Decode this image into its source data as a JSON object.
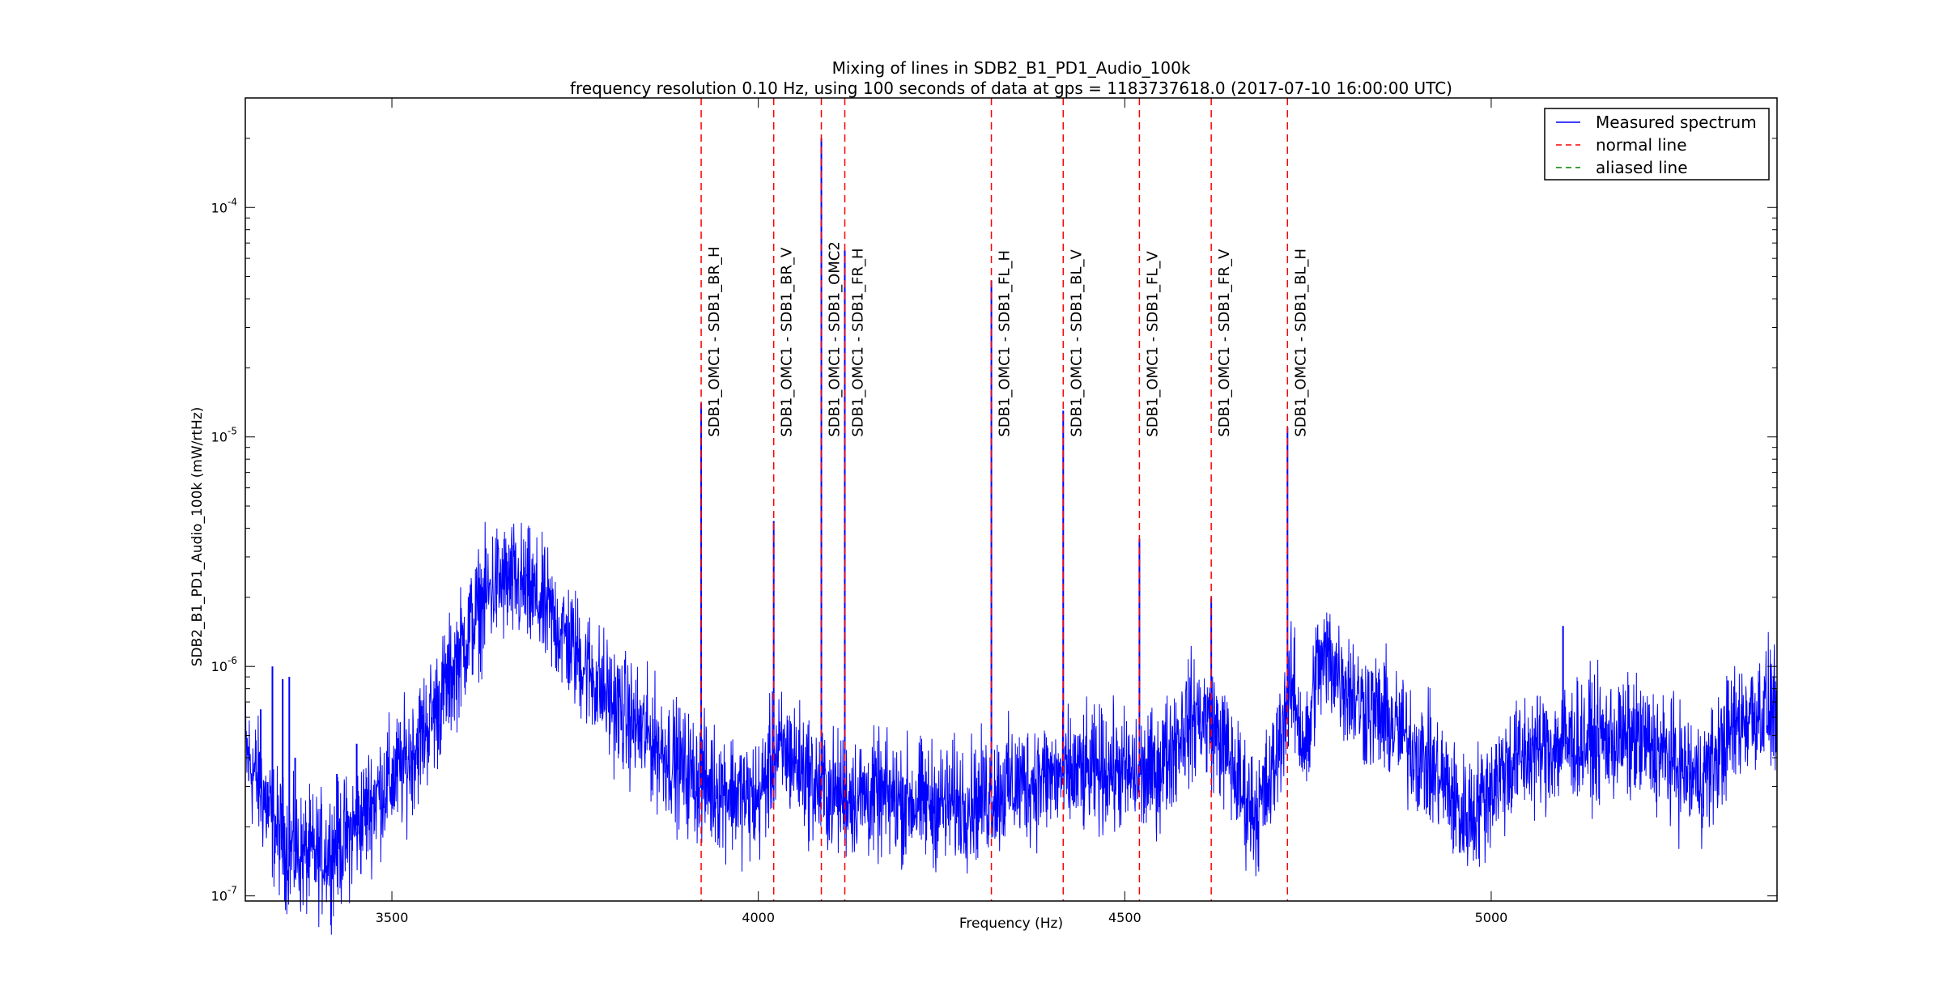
{
  "chart_data": {
    "type": "line",
    "title": "Mixing of lines in SDB2_B1_PD1_Audio_100k",
    "subtitle": "frequency resolution 0.10 Hz, using 100 seconds of data at gps = 1183737618.0 (2017-07-10 16:00:00 UTC)",
    "xlabel": "Frequency (Hz)",
    "ylabel": "SDB2_B1_PD1_Audio_100k (mW/rtHz)",
    "xlim": [
      3300,
      5390
    ],
    "ylim": [
      9.5e-08,
      0.0003
    ],
    "yscale": "log",
    "grid": false,
    "legend_position": "top-right",
    "x_ticks": [
      {
        "value": 3500,
        "label": "3500"
      },
      {
        "value": 4000,
        "label": "4000"
      },
      {
        "value": 4500,
        "label": "4500"
      },
      {
        "value": 5000,
        "label": "5000"
      }
    ],
    "y_ticks": [
      {
        "value": 1e-07,
        "base": "10",
        "exp": "-7"
      },
      {
        "value": 1e-06,
        "base": "10",
        "exp": "-6"
      },
      {
        "value": 1e-05,
        "base": "10",
        "exp": "-5"
      },
      {
        "value": 0.0001,
        "base": "10",
        "exp": "-4"
      }
    ],
    "legend": [
      {
        "label": "Measured spectrum",
        "color": "#0000ff",
        "style": "solid"
      },
      {
        "label": "normal line",
        "color": "#ff0000",
        "style": "dashed"
      },
      {
        "label": "aliased line",
        "color": "#008000",
        "style": "dashed"
      }
    ],
    "spectrum": {
      "name": "Measured spectrum",
      "color": "#0000ff",
      "baseline": [
        [
          3300,
          4.2e-07
        ],
        [
          3320,
          3e-07
        ],
        [
          3340,
          2e-07
        ],
        [
          3360,
          1.6e-07
        ],
        [
          3380,
          1.5e-07
        ],
        [
          3400,
          1.5e-07
        ],
        [
          3420,
          1.6e-07
        ],
        [
          3440,
          1.8e-07
        ],
        [
          3460,
          2.2e-07
        ],
        [
          3480,
          2.8e-07
        ],
        [
          3500,
          3.2e-07
        ],
        [
          3520,
          3.8e-07
        ],
        [
          3540,
          5e-07
        ],
        [
          3560,
          6.5e-07
        ],
        [
          3580,
          9e-07
        ],
        [
          3600,
          1.3e-06
        ],
        [
          3620,
          1.8e-06
        ],
        [
          3640,
          2.3e-06
        ],
        [
          3660,
          2.3e-06
        ],
        [
          3680,
          2.2e-06
        ],
        [
          3700,
          1.9e-06
        ],
        [
          3720,
          1.6e-06
        ],
        [
          3740,
          1.3e-06
        ],
        [
          3760,
          1.05e-06
        ],
        [
          3780,
          8.5e-07
        ],
        [
          3800,
          7e-07
        ],
        [
          3820,
          6e-07
        ],
        [
          3840,
          5.2e-07
        ],
        [
          3860,
          4.6e-07
        ],
        [
          3880,
          4e-07
        ],
        [
          3900,
          3.5e-07
        ],
        [
          3920,
          3.2e-07
        ],
        [
          3940,
          3e-07
        ],
        [
          3960,
          2.9e-07
        ],
        [
          3980,
          2.7e-07
        ],
        [
          4000,
          2.6e-07
        ],
        [
          4020,
          4e-07
        ],
        [
          4040,
          4.2e-07
        ],
        [
          4060,
          3.6e-07
        ],
        [
          4080,
          3e-07
        ],
        [
          4100,
          2.8e-07
        ],
        [
          4150,
          2.7e-07
        ],
        [
          4200,
          2.6e-07
        ],
        [
          4250,
          2.5e-07
        ],
        [
          4300,
          2.6e-07
        ],
        [
          4340,
          3e-07
        ],
        [
          4400,
          3.3e-07
        ],
        [
          4450,
          3.4e-07
        ],
        [
          4480,
          3.6e-07
        ],
        [
          4500,
          3.4e-07
        ],
        [
          4520,
          3.3e-07
        ],
        [
          4540,
          3.4e-07
        ],
        [
          4560,
          4.2e-07
        ],
        [
          4580,
          5.5e-07
        ],
        [
          4600,
          6.2e-07
        ],
        [
          4620,
          5.5e-07
        ],
        [
          4640,
          4.2e-07
        ],
        [
          4660,
          2.8e-07
        ],
        [
          4680,
          2.3e-07
        ],
        [
          4700,
          3.2e-07
        ],
        [
          4720,
          6.8e-07
        ],
        [
          4730,
          8e-07
        ],
        [
          4740,
          5.2e-07
        ],
        [
          4750,
          4.3e-07
        ],
        [
          4760,
          9.5e-07
        ],
        [
          4780,
          1.1e-06
        ],
        [
          4800,
          8.5e-07
        ],
        [
          4820,
          7e-07
        ],
        [
          4860,
          5.8e-07
        ],
        [
          4900,
          4.2e-07
        ],
        [
          4940,
          3e-07
        ],
        [
          4960,
          2.2e-07
        ],
        [
          4980,
          2.4e-07
        ],
        [
          5000,
          3e-07
        ],
        [
          5020,
          3.6e-07
        ],
        [
          5050,
          4.2e-07
        ],
        [
          5100,
          4.6e-07
        ],
        [
          5150,
          4.8e-07
        ],
        [
          5200,
          4.8e-07
        ],
        [
          5230,
          4.2e-07
        ],
        [
          5260,
          3.6e-07
        ],
        [
          5280,
          3.2e-07
        ],
        [
          5300,
          3.6e-07
        ],
        [
          5320,
          4.8e-07
        ],
        [
          5340,
          5.8e-07
        ],
        [
          5360,
          6.4e-07
        ],
        [
          5390,
          6.6e-07
        ]
      ],
      "spikes": [
        [
          3321,
          6.5e-07
        ],
        [
          3337,
          1e-06
        ],
        [
          3351,
          8.8e-07
        ],
        [
          3360,
          9e-07
        ],
        [
          3368,
          4e-07
        ],
        [
          3425,
          3.4e-07
        ],
        [
          3452,
          4.6e-07
        ],
        [
          3922,
          1.4e-05
        ],
        [
          4021,
          4.3e-06
        ],
        [
          4086,
          0.0002
        ],
        [
          4118,
          6.5e-05
        ],
        [
          4318,
          4.8e-05
        ],
        [
          4416,
          1.3e-05
        ],
        [
          4520,
          3.6e-06
        ],
        [
          4618,
          2e-06
        ],
        [
          4722,
          1.1e-05
        ],
        [
          5098,
          1.5e-06
        ]
      ]
    },
    "lines": [
      {
        "freq": 3922,
        "label": "SDB1_OMC1 - SDB1_BR_H",
        "type": "normal line"
      },
      {
        "freq": 4021,
        "label": "SDB1_OMC1 - SDB1_BR_V",
        "type": "normal line"
      },
      {
        "freq": 4086,
        "label": "SDB1_OMC1 - SDB1_OMC2",
        "type": "normal line"
      },
      {
        "freq": 4118,
        "label": "SDB1_OMC1 - SDB1_FR_H",
        "type": "normal line"
      },
      {
        "freq": 4318,
        "label": "SDB1_OMC1 - SDB1_FL_H",
        "type": "normal line"
      },
      {
        "freq": 4416,
        "label": "SDB1_OMC1 - SDB1_BL_V",
        "type": "normal line"
      },
      {
        "freq": 4520,
        "label": "SDB1_OMC1 - SDB1_FL_V",
        "type": "normal line"
      },
      {
        "freq": 4618,
        "label": "SDB1_OMC1 - SDB1_FR_V",
        "type": "normal line"
      },
      {
        "freq": 4722,
        "label": "SDB1_OMC1 - SDB1_BL_H",
        "type": "normal line"
      }
    ],
    "line_label_value": 1e-05
  }
}
